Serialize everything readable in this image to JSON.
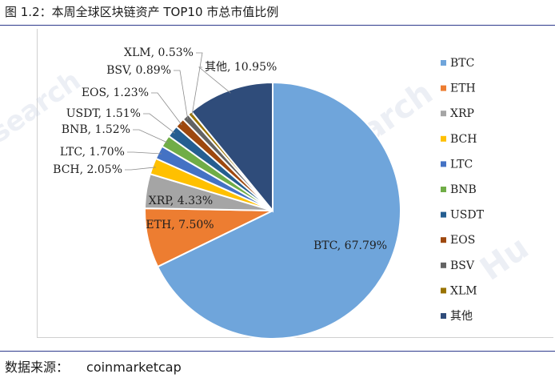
{
  "figure": {
    "title": "图 1.2：本周全球区块链资产 TOP10 市总市值比例",
    "source_label": "数据来源：",
    "source_value": "coinmarketcap"
  },
  "watermark": {
    "text": "Huobi Research"
  },
  "chart_data": {
    "type": "pie",
    "title": "",
    "start_angle_deg": 0,
    "direction": "clockwise",
    "legend_position": "right",
    "slices": [
      {
        "name": "BTC",
        "value": 67.79,
        "label": "BTC, 67.79%",
        "color": "#6FA5DB"
      },
      {
        "name": "ETH",
        "value": 7.5,
        "label": "ETH, 7.50%",
        "color": "#ED7D31"
      },
      {
        "name": "XRP",
        "value": 4.33,
        "label": "XRP, 4.33%",
        "color": "#A5A5A5"
      },
      {
        "name": "BCH",
        "value": 2.05,
        "label": "BCH, 2.05%",
        "color": "#FFC000"
      },
      {
        "name": "LTC",
        "value": 1.7,
        "label": "LTC, 1.70%",
        "color": "#4472C4"
      },
      {
        "name": "BNB",
        "value": 1.52,
        "label": "BNB, 1.52%",
        "color": "#70AD47"
      },
      {
        "name": "USDT",
        "value": 1.51,
        "label": "USDT, 1.51%",
        "color": "#255E91"
      },
      {
        "name": "EOS",
        "value": 1.23,
        "label": "EOS, 1.23%",
        "color": "#9E480E"
      },
      {
        "name": "BSV",
        "value": 0.89,
        "label": "BSV, 0.89%",
        "color": "#636363"
      },
      {
        "name": "XLM",
        "value": 0.53,
        "label": "XLM, 0.53%",
        "color": "#997300"
      },
      {
        "name": "其他",
        "value": 10.95,
        "label": "其他, 10.95%",
        "color": "#2F4C7A"
      }
    ]
  }
}
